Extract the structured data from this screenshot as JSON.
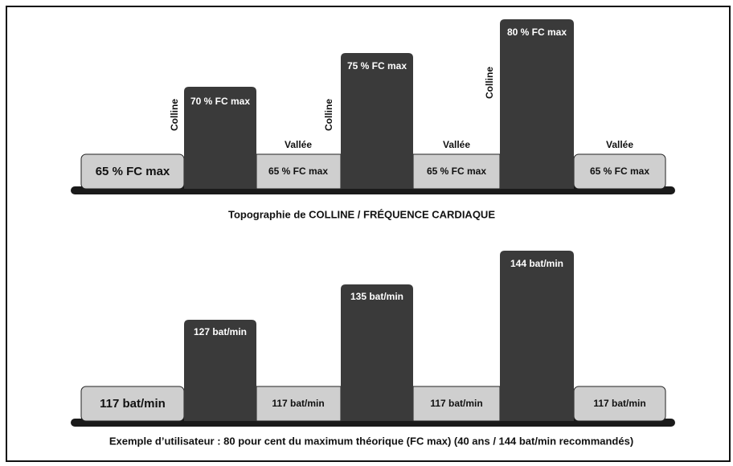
{
  "top": {
    "valleys": [
      "65 % FC max",
      "65 % FC max",
      "65 % FC max",
      "65 % FC max"
    ],
    "valley_tags": [
      "Vallée",
      "Vallée",
      "Vallée"
    ],
    "hills": [
      {
        "label": "70 % FC max",
        "tag": "Colline"
      },
      {
        "label": "75 % FC max",
        "tag": "Colline"
      },
      {
        "label": "80 % FC max",
        "tag": "Colline"
      }
    ],
    "caption": "Topographie de COLLINE / FRÉQUENCE CARDIAQUE"
  },
  "bottom": {
    "valleys": [
      "117 bat/min",
      "117 bat/min",
      "117 bat/min",
      "117 bat/min"
    ],
    "hills": [
      "127 bat/min",
      "135 bat/min",
      "144 bat/min"
    ],
    "caption": "Exemple d’utilisateur : 80 pour cent du maximum théorique (FC max) (40 ans / 144 bat/min recommandés)"
  }
}
